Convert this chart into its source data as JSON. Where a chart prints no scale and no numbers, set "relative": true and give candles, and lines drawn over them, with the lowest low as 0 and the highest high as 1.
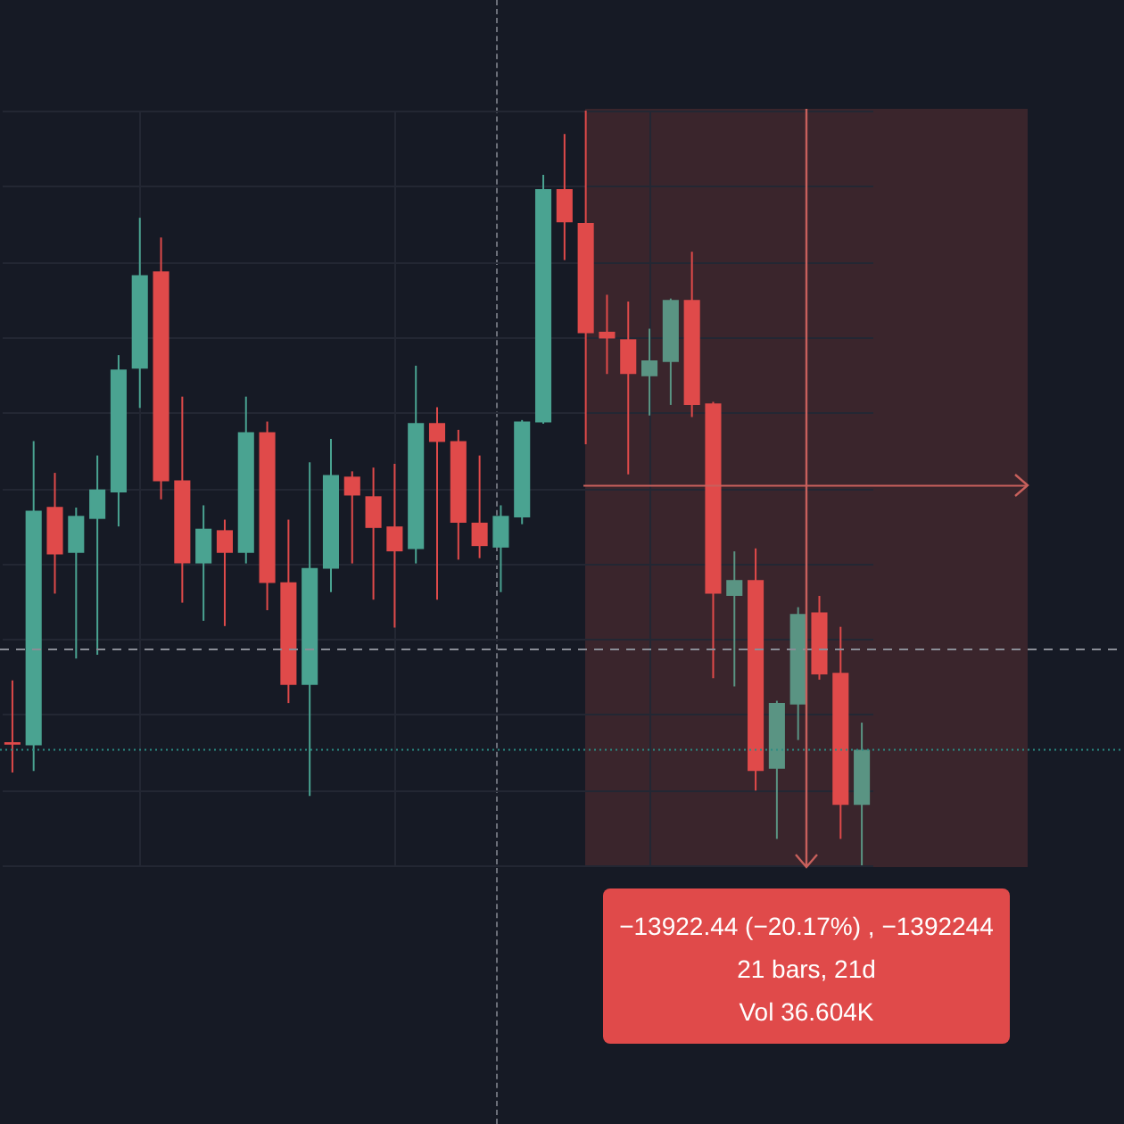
{
  "chart_data": {
    "type": "candlestick",
    "relative": true,
    "grid": true,
    "categories": [
      null,
      null,
      null,
      null,
      null,
      null,
      null,
      null,
      null,
      null,
      null,
      null,
      null,
      null,
      null,
      null,
      null,
      null,
      null,
      null,
      null,
      null,
      null,
      null,
      null,
      null,
      null,
      null,
      null,
      null,
      null,
      null,
      null,
      null,
      null,
      null,
      null,
      null,
      null,
      null,
      null
    ],
    "ohlc": [
      [
        0.163,
        0.245,
        0.123,
        0.16
      ],
      [
        0.159,
        0.562,
        0.125,
        0.47
      ],
      [
        0.475,
        0.52,
        0.36,
        0.412
      ],
      [
        0.414,
        0.474,
        0.274,
        0.463
      ],
      [
        0.459,
        0.543,
        0.279,
        0.498
      ],
      [
        0.494,
        0.676,
        0.449,
        0.657
      ],
      [
        0.658,
        0.858,
        0.606,
        0.782
      ],
      [
        0.787,
        0.832,
        0.485,
        0.509
      ],
      [
        0.51,
        0.621,
        0.348,
        0.4
      ],
      [
        0.4,
        0.477,
        0.324,
        0.446
      ],
      [
        0.444,
        0.458,
        0.317,
        0.414
      ],
      [
        0.414,
        0.621,
        0.4,
        0.574
      ],
      [
        0.574,
        0.588,
        0.338,
        0.374
      ],
      [
        0.375,
        0.458,
        0.215,
        0.239
      ],
      [
        0.239,
        0.534,
        0.092,
        0.394
      ],
      [
        0.393,
        0.565,
        0.362,
        0.517
      ],
      [
        0.515,
        0.522,
        0.4,
        0.49
      ],
      [
        0.489,
        0.527,
        0.352,
        0.447
      ],
      [
        0.449,
        0.532,
        0.315,
        0.416
      ],
      [
        0.419,
        0.662,
        0.4,
        0.586
      ],
      [
        0.586,
        0.607,
        0.352,
        0.561
      ],
      [
        0.562,
        0.577,
        0.405,
        0.454
      ],
      [
        0.454,
        0.543,
        0.407,
        0.423
      ],
      [
        0.421,
        0.477,
        0.362,
        0.463
      ],
      [
        0.461,
        0.59,
        0.452,
        0.588
      ],
      [
        0.587,
        0.915,
        0.585,
        0.896
      ],
      [
        0.896,
        0.969,
        0.802,
        0.852
      ],
      [
        0.851,
        1.0,
        0.558,
        0.705
      ],
      [
        0.707,
        0.756,
        0.651,
        0.698
      ],
      [
        0.697,
        0.747,
        0.518,
        0.651
      ],
      [
        0.648,
        0.711,
        0.596,
        0.669
      ],
      [
        0.667,
        0.751,
        0.61,
        0.749
      ],
      [
        0.749,
        0.813,
        0.594,
        0.61
      ],
      [
        0.612,
        0.614,
        0.248,
        0.36
      ],
      [
        0.357,
        0.416,
        0.237,
        0.378
      ],
      [
        0.378,
        0.42,
        0.099,
        0.125
      ],
      [
        0.128,
        0.218,
        0.035,
        0.215
      ],
      [
        0.213,
        0.342,
        0.166,
        0.333
      ],
      [
        0.335,
        0.357,
        0.246,
        0.253
      ],
      [
        0.255,
        0.316,
        0.035,
        0.08
      ],
      [
        0.08,
        0.189,
        0.0,
        0.153
      ]
    ],
    "colors": [
      "#e04a4a",
      "#4aa391",
      "#e04a4a",
      "#4aa391",
      "#4aa391",
      "#4aa391",
      "#4aa391",
      "#e04a4a",
      "#e04a4a",
      "#4aa391",
      "#e04a4a",
      "#4aa391",
      "#e04a4a",
      "#e04a4a",
      "#4aa391",
      "#4aa391",
      "#e04a4a",
      "#e04a4a",
      "#e04a4a",
      "#4aa391",
      "#e04a4a",
      "#e04a4a",
      "#e04a4a",
      "#4aa391",
      "#4aa391",
      "#4aa391",
      "#e04a4a",
      "#e04a4a",
      "#e04a4a",
      "#e04a4a",
      "#5a9483",
      "#5a9483",
      "#e04a4a",
      "#e04a4a",
      "#5a9483",
      "#e04a4a",
      "#5a9483",
      "#5a9483",
      "#e04a4a",
      "#e04a4a",
      "#5a9483"
    ],
    "ref_lines": [
      {
        "axis": "y",
        "value": 0.286,
        "color": "#8a8d96",
        "line_style": "dashed"
      },
      {
        "axis": "y",
        "value": 0.153,
        "color": "#2a8c84",
        "line_style": "dotted"
      },
      {
        "axis": "y",
        "value": 0.503,
        "color": "#c8605c",
        "line_style": "solid"
      }
    ],
    "annotations": [
      "−13922.44 (−20.17%) , −1392244",
      "21 bars, 21d",
      "Vol 36.604K"
    ]
  }
}
